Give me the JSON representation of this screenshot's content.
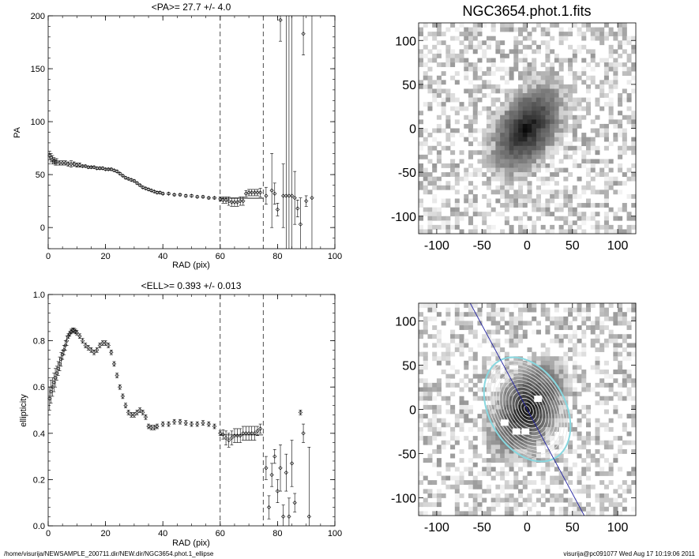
{
  "footer": {
    "path": "/home/visurija/NEWSAMPLE_200711.dir/NEW.dir/NGC3654.phot.1_ellipse",
    "user_time": "visurija@pc091077  Wed Aug 17 10:19:06 2011"
  },
  "chart_data": [
    {
      "type": "scatter",
      "title": "<PA>=  27.7 +/-   4.0",
      "xlabel": "RAD (pix)",
      "ylabel": "PA",
      "xlim": [
        0,
        100
      ],
      "ylim": [
        -20,
        200
      ],
      "xticks": [
        0,
        20,
        40,
        60,
        80,
        100
      ],
      "yticks": [
        0,
        50,
        100,
        150,
        200
      ],
      "vlines": [
        60,
        75
      ],
      "mean_segment": {
        "x": [
          60,
          75
        ],
        "y": 27.7
      },
      "points": [
        [
          0.5,
          68,
          4
        ],
        [
          1,
          66,
          4
        ],
        [
          1.5,
          64,
          4
        ],
        [
          2,
          63,
          3
        ],
        [
          2.5,
          62,
          3
        ],
        [
          3,
          62,
          3
        ],
        [
          4,
          61,
          2
        ],
        [
          5,
          61,
          2
        ],
        [
          6,
          61,
          2
        ],
        [
          7,
          60,
          2
        ],
        [
          8,
          60,
          3
        ],
        [
          9,
          60,
          2
        ],
        [
          10,
          59,
          2
        ],
        [
          11,
          59,
          2
        ],
        [
          12,
          58,
          1
        ],
        [
          13,
          58,
          1
        ],
        [
          14,
          57,
          1
        ],
        [
          15,
          57,
          1
        ],
        [
          16,
          57,
          1
        ],
        [
          17,
          56,
          1
        ],
        [
          18,
          56,
          1
        ],
        [
          19,
          56,
          1
        ],
        [
          20,
          55,
          1
        ],
        [
          21,
          55,
          1
        ],
        [
          22,
          55,
          1
        ],
        [
          23,
          54,
          1
        ],
        [
          24,
          53,
          1
        ],
        [
          25,
          51,
          1
        ],
        [
          26,
          49,
          1
        ],
        [
          27,
          47,
          1
        ],
        [
          28,
          46,
          1
        ],
        [
          29,
          45,
          1
        ],
        [
          30,
          44,
          1
        ],
        [
          31,
          42,
          1
        ],
        [
          32,
          40,
          1
        ],
        [
          33,
          38,
          1
        ],
        [
          34,
          37,
          1
        ],
        [
          35,
          36,
          1
        ],
        [
          36,
          35,
          1
        ],
        [
          37,
          34,
          1
        ],
        [
          38,
          33,
          1
        ],
        [
          39,
          33,
          1
        ],
        [
          40,
          32,
          1
        ],
        [
          42,
          32,
          1
        ],
        [
          44,
          31,
          1
        ],
        [
          46,
          31,
          1
        ],
        [
          48,
          30,
          1
        ],
        [
          50,
          30,
          1
        ],
        [
          52,
          29,
          1
        ],
        [
          54,
          29,
          1
        ],
        [
          56,
          28,
          1
        ],
        [
          58,
          28,
          1
        ],
        [
          60,
          27,
          2
        ],
        [
          61,
          26,
          3
        ],
        [
          62,
          26,
          3
        ],
        [
          63,
          25,
          4
        ],
        [
          64,
          24,
          4
        ],
        [
          65,
          24,
          4
        ],
        [
          66,
          24,
          4
        ],
        [
          67,
          25,
          4
        ],
        [
          68,
          25,
          4
        ],
        [
          69,
          32,
          3
        ],
        [
          70,
          33,
          3
        ],
        [
          71,
          33,
          3
        ],
        [
          72,
          33,
          3
        ],
        [
          73,
          33,
          3
        ],
        [
          74,
          33,
          4
        ],
        [
          76,
          30,
          8
        ],
        [
          78,
          35,
          35
        ],
        [
          79,
          32,
          10
        ],
        [
          80,
          17,
          6
        ],
        [
          81,
          196,
          20
        ],
        [
          82,
          30,
          30
        ],
        [
          83,
          30,
          200
        ],
        [
          84,
          30,
          170
        ],
        [
          85,
          30,
          200
        ],
        [
          86,
          28,
          25
        ],
        [
          87,
          18,
          8
        ],
        [
          88,
          3,
          25
        ],
        [
          89,
          183,
          20
        ],
        [
          90,
          25,
          5
        ],
        [
          92,
          28,
          200
        ]
      ]
    },
    {
      "type": "scatter",
      "title": "<ELL>= 0.393 +/-  0.013",
      "xlabel": "RAD (pix)",
      "ylabel": "ellipticity",
      "xlim": [
        0,
        100
      ],
      "ylim": [
        0,
        1.0
      ],
      "xticks": [
        0,
        20,
        40,
        60,
        80,
        100
      ],
      "yticks": [
        0.0,
        0.2,
        0.4,
        0.6,
        0.8,
        1.0
      ],
      "vlines": [
        60,
        75
      ],
      "mean_segment": {
        "x": [
          60,
          75
        ],
        "y": 0.393
      },
      "points": [
        [
          0.5,
          0.55,
          0.05
        ],
        [
          1,
          0.58,
          0.05
        ],
        [
          1.5,
          0.6,
          0.04
        ],
        [
          2,
          0.62,
          0.04
        ],
        [
          2.5,
          0.64,
          0.04
        ],
        [
          3,
          0.66,
          0.03
        ],
        [
          3.5,
          0.68,
          0.03
        ],
        [
          4,
          0.7,
          0.03
        ],
        [
          4.5,
          0.72,
          0.03
        ],
        [
          5,
          0.74,
          0.02
        ],
        [
          5.5,
          0.76,
          0.02
        ],
        [
          6,
          0.78,
          0.02
        ],
        [
          6.5,
          0.8,
          0.02
        ],
        [
          7,
          0.82,
          0.01
        ],
        [
          7.5,
          0.83,
          0.01
        ],
        [
          8,
          0.84,
          0.01
        ],
        [
          8.5,
          0.845,
          0.01
        ],
        [
          9,
          0.845,
          0.01
        ],
        [
          9.5,
          0.84,
          0.01
        ],
        [
          10,
          0.835,
          0.01
        ],
        [
          11,
          0.82,
          0.01
        ],
        [
          12,
          0.8,
          0.01
        ],
        [
          13,
          0.78,
          0.01
        ],
        [
          14,
          0.77,
          0.01
        ],
        [
          15,
          0.76,
          0.01
        ],
        [
          16,
          0.75,
          0.01
        ],
        [
          17,
          0.76,
          0.01
        ],
        [
          18,
          0.78,
          0.01
        ],
        [
          19,
          0.79,
          0.01
        ],
        [
          20,
          0.79,
          0.01
        ],
        [
          21,
          0.78,
          0.01
        ],
        [
          22,
          0.75,
          0.01
        ],
        [
          23,
          0.7,
          0.01
        ],
        [
          24,
          0.65,
          0.01
        ],
        [
          25,
          0.6,
          0.01
        ],
        [
          26,
          0.56,
          0.01
        ],
        [
          27,
          0.52,
          0.01
        ],
        [
          28,
          0.49,
          0.01
        ],
        [
          29,
          0.48,
          0.01
        ],
        [
          30,
          0.48,
          0.01
        ],
        [
          31,
          0.49,
          0.01
        ],
        [
          32,
          0.5,
          0.01
        ],
        [
          33,
          0.49,
          0.01
        ],
        [
          34,
          0.47,
          0.01
        ],
        [
          35,
          0.43,
          0.01
        ],
        [
          36,
          0.425,
          0.01
        ],
        [
          37,
          0.425,
          0.01
        ],
        [
          38,
          0.43,
          0.01
        ],
        [
          40,
          0.44,
          0.01
        ],
        [
          42,
          0.44,
          0.01
        ],
        [
          44,
          0.45,
          0.01
        ],
        [
          46,
          0.45,
          0.01
        ],
        [
          48,
          0.445,
          0.01
        ],
        [
          50,
          0.44,
          0.01
        ],
        [
          52,
          0.44,
          0.01
        ],
        [
          54,
          0.445,
          0.01
        ],
        [
          56,
          0.44,
          0.01
        ],
        [
          58,
          0.43,
          0.01
        ],
        [
          60,
          0.4,
          0.01
        ],
        [
          61,
          0.395,
          0.02
        ],
        [
          62,
          0.38,
          0.03
        ],
        [
          63,
          0.37,
          0.03
        ],
        [
          64,
          0.38,
          0.03
        ],
        [
          65,
          0.39,
          0.03
        ],
        [
          66,
          0.39,
          0.03
        ],
        [
          67,
          0.39,
          0.03
        ],
        [
          68,
          0.4,
          0.03
        ],
        [
          69,
          0.4,
          0.03
        ],
        [
          70,
          0.4,
          0.03
        ],
        [
          71,
          0.4,
          0.03
        ],
        [
          72,
          0.4,
          0.03
        ],
        [
          73,
          0.41,
          0.02
        ],
        [
          74,
          0.42,
          0.02
        ],
        [
          76,
          0.25,
          0.05
        ],
        [
          77,
          0.08,
          0.05
        ],
        [
          78,
          0.22,
          0.05
        ],
        [
          79,
          0.3,
          0.03
        ],
        [
          80,
          0.15,
          0.05
        ],
        [
          81,
          0.25,
          0.1
        ],
        [
          82,
          0.04,
          0.05
        ],
        [
          83,
          0.23,
          0.08
        ],
        [
          84,
          0.04,
          0.08
        ],
        [
          85,
          0.27,
          0.1
        ],
        [
          86,
          0.1,
          0.04
        ],
        [
          88,
          0.49,
          0.01
        ],
        [
          89,
          0.4,
          0.04
        ],
        [
          91,
          0.04,
          0.3
        ]
      ]
    },
    {
      "type": "heatmap",
      "title": "NGC3654.phot.1.fits",
      "xlim": [
        -120,
        120
      ],
      "ylim": [
        -120,
        120
      ],
      "xticks": [
        -100,
        -50,
        0,
        50,
        100
      ],
      "yticks": [
        -100,
        -50,
        0,
        50,
        100
      ],
      "galaxy": {
        "center": [
          0,
          0
        ],
        "major": 55,
        "minor": 32,
        "pa_deg": 30
      }
    },
    {
      "type": "heatmap",
      "xlim": [
        -120,
        120
      ],
      "ylim": [
        -120,
        120
      ],
      "xticks": [
        -100,
        -50,
        0,
        50,
        100
      ],
      "yticks": [
        -100,
        -50,
        0,
        50,
        100
      ],
      "galaxy": {
        "center": [
          0,
          0
        ],
        "major": 55,
        "minor": 32,
        "pa_deg": 30
      },
      "isophotes": {
        "count": 14,
        "outer_major": 62,
        "outer_minor": 42,
        "color": "#88d8e0"
      },
      "major_axis_line": {
        "pa_deg": 27.7,
        "color": "#2020a0"
      },
      "masks": [
        [
          12,
          12
        ],
        [
          -25,
          -15
        ],
        [
          -12,
          -25
        ],
        [
          -2,
          -25
        ],
        [
          15,
          -45
        ]
      ]
    }
  ]
}
